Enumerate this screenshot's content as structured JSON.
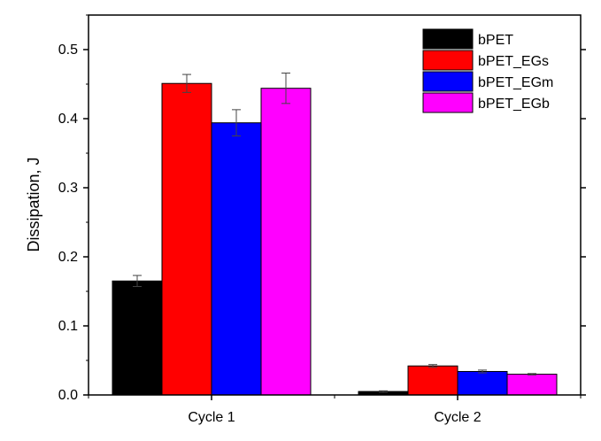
{
  "chart_data": {
    "type": "bar",
    "categories": [
      "Cycle 1",
      "Cycle 2"
    ],
    "series": [
      {
        "name": "bPET",
        "color": "#000000",
        "values": [
          0.165,
          0.005
        ],
        "errors": [
          0.008,
          0.001
        ]
      },
      {
        "name": "bPET_EGs",
        "color": "#ff0000",
        "values": [
          0.451,
          0.042
        ],
        "errors": [
          0.013,
          0.002
        ]
      },
      {
        "name": "bPET_EGm",
        "color": "#0000ff",
        "values": [
          0.394,
          0.034
        ],
        "errors": [
          0.019,
          0.002
        ]
      },
      {
        "name": "bPET_EGb",
        "color": "#ff00ff",
        "values": [
          0.444,
          0.03
        ],
        "errors": [
          0.022,
          0.001
        ]
      }
    ],
    "title": "",
    "xlabel": "",
    "ylabel": "Dissipation, J",
    "ylim": [
      0,
      0.55
    ],
    "yticks": [
      "0.0",
      "0.1",
      "0.2",
      "0.3",
      "0.4",
      "0.5"
    ],
    "grid": false,
    "legend_position": "top-right"
  }
}
